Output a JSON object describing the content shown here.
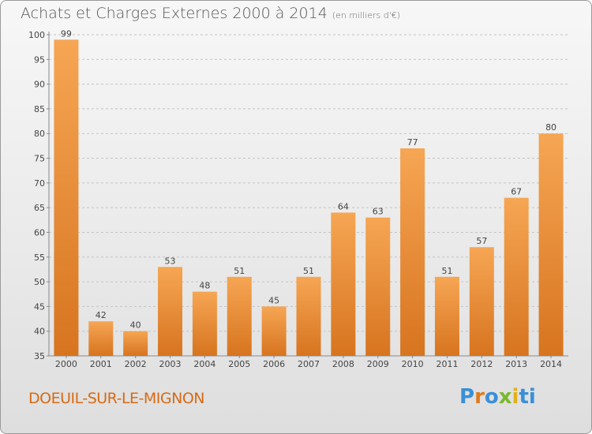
{
  "header": {
    "title": "Achats et Charges Externes 2000 à 2014",
    "subtitle": "(en milliers d'€)"
  },
  "footer": {
    "location": "DOEUIL-SUR-LE-MIGNON",
    "logo_letters": [
      "P",
      "r",
      "o",
      "x",
      "i",
      "t",
      "i"
    ]
  },
  "chart_data": {
    "type": "bar",
    "title": "Achats et Charges Externes 2000 à 2014",
    "subtitle": "(en milliers d'€)",
    "categories": [
      "2000",
      "2001",
      "2002",
      "2003",
      "2004",
      "2005",
      "2006",
      "2007",
      "2008",
      "2009",
      "2010",
      "2011",
      "2012",
      "2013",
      "2014"
    ],
    "values": [
      99,
      42,
      40,
      53,
      48,
      51,
      45,
      51,
      64,
      63,
      77,
      51,
      57,
      67,
      80
    ],
    "ylim": [
      35,
      100
    ],
    "yticks": [
      35,
      40,
      45,
      50,
      55,
      60,
      65,
      70,
      75,
      80,
      85,
      90,
      95,
      100
    ],
    "grid": "horizontal dashed",
    "bar_color_top": "#f6a654",
    "bar_color_bottom": "#d7741f"
  }
}
